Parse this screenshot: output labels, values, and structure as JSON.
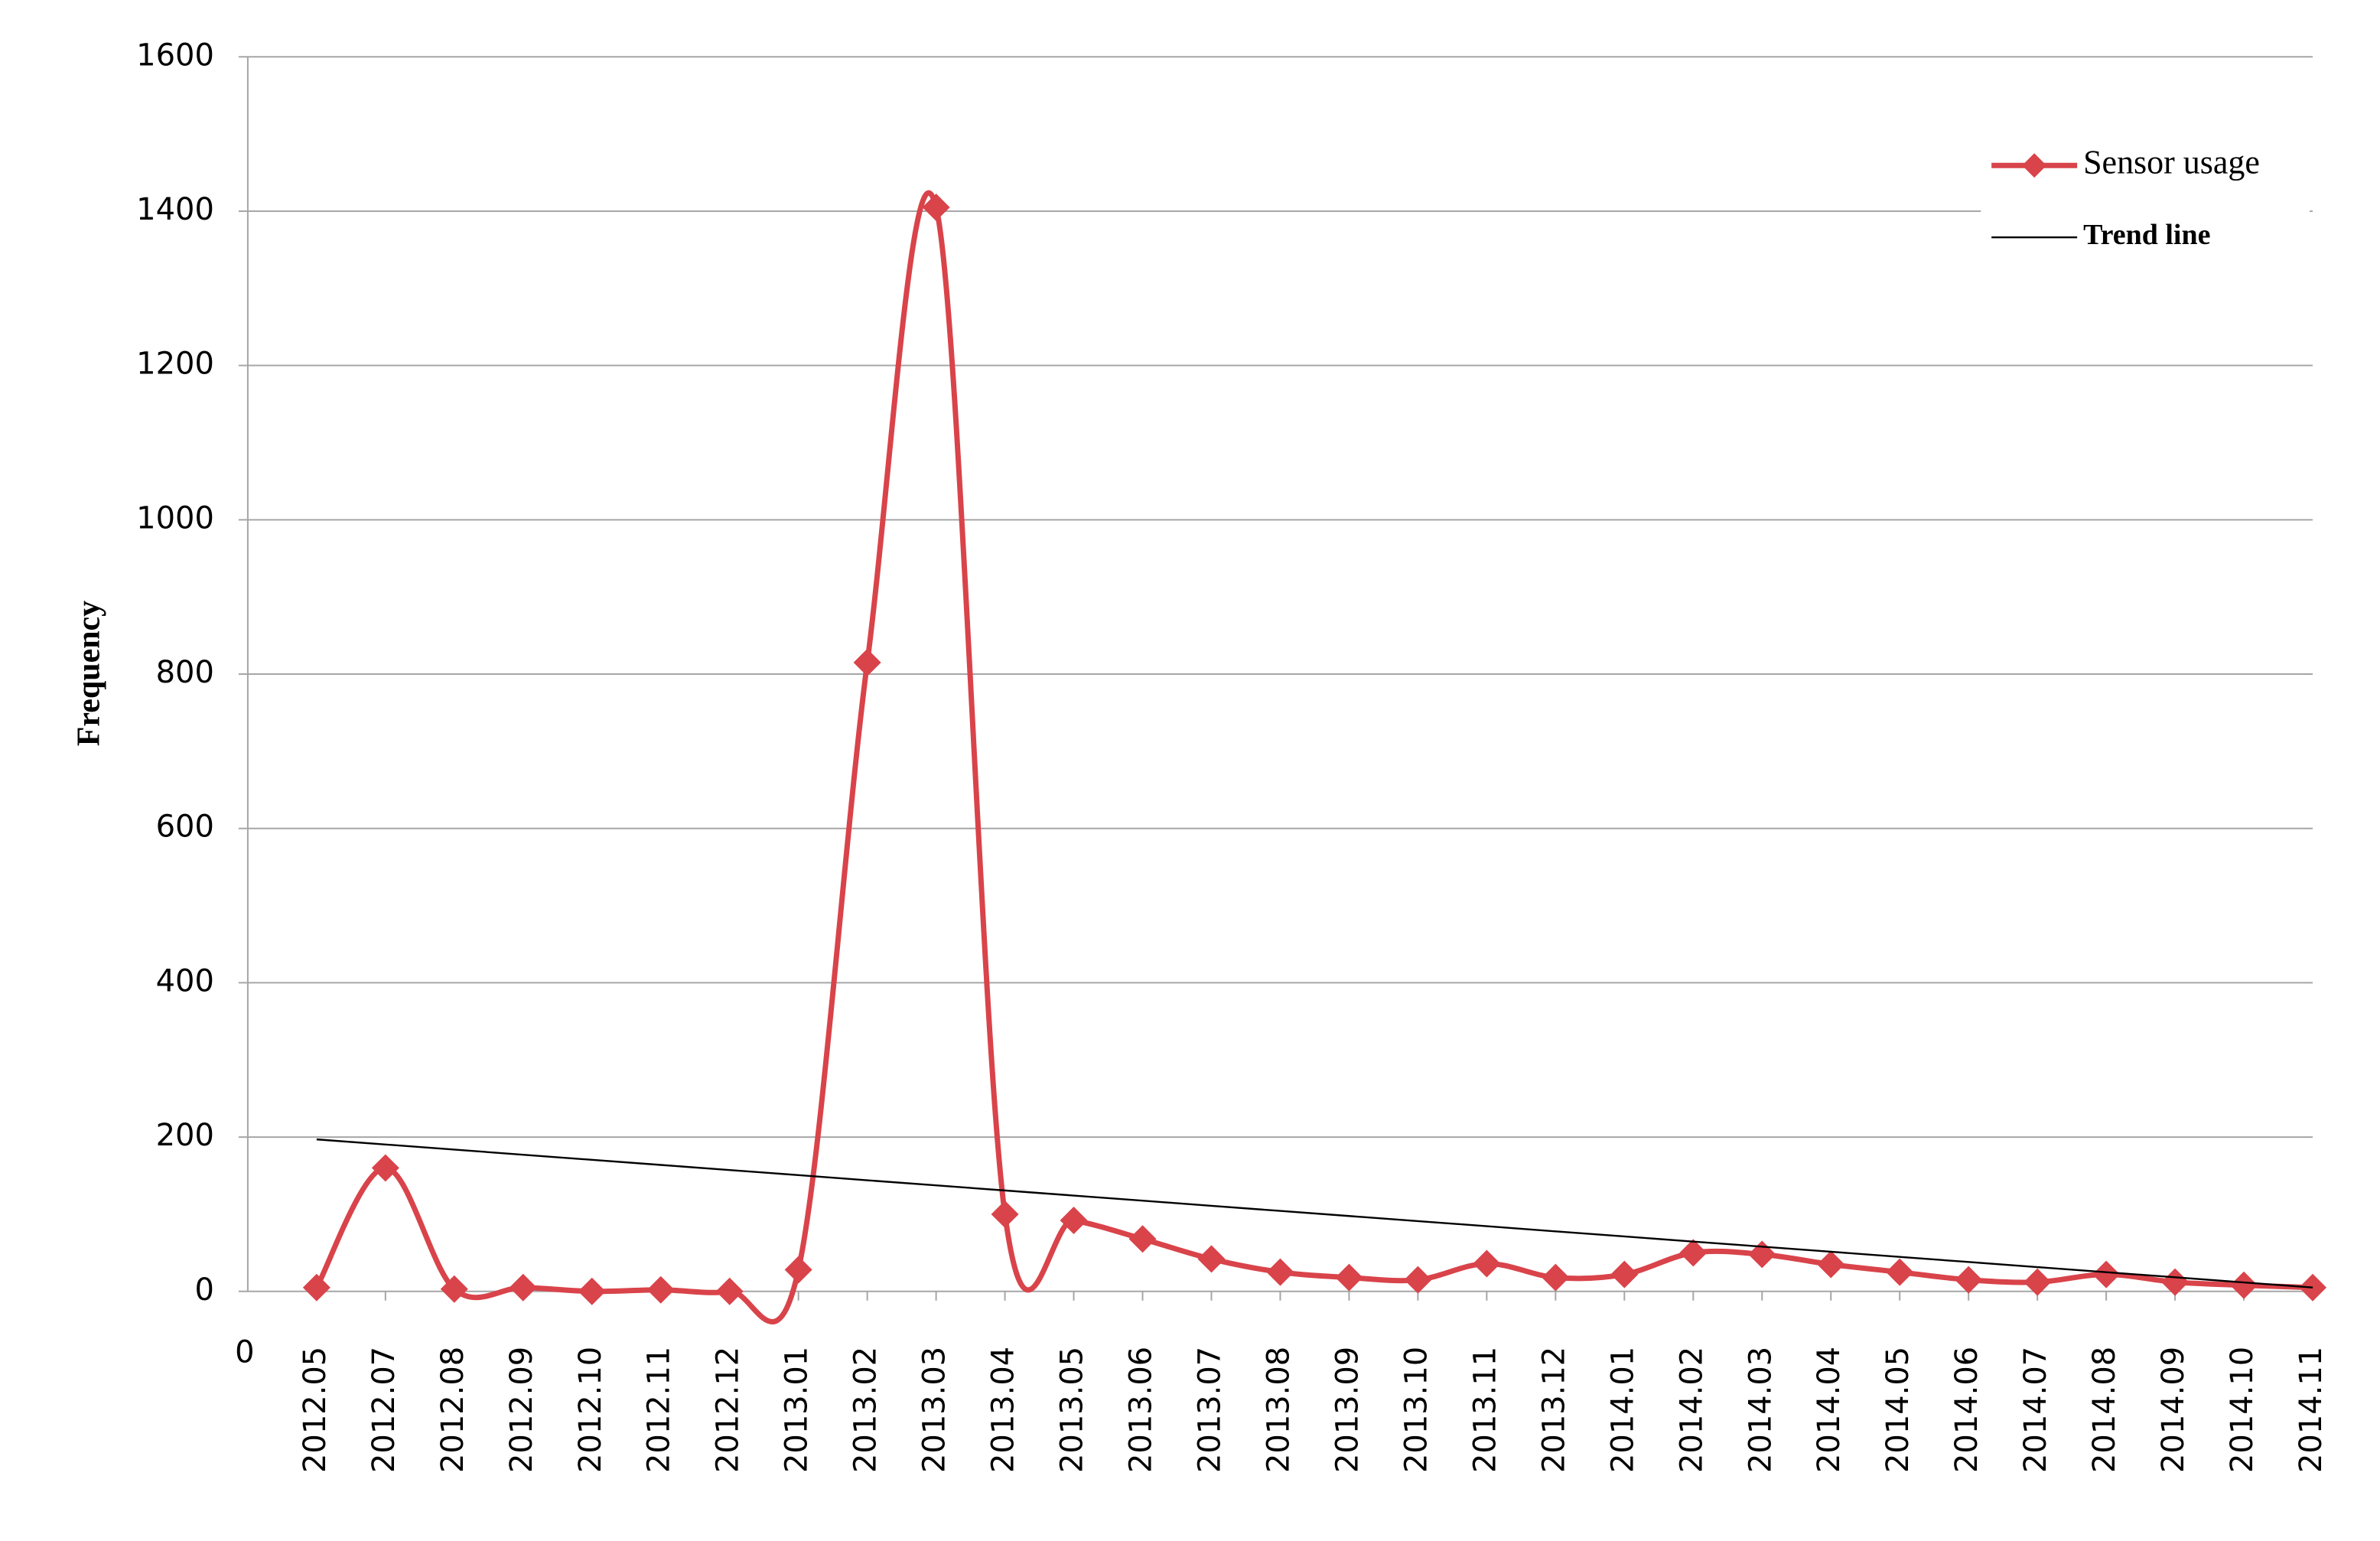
{
  "chart_data": {
    "type": "line",
    "y_label": "Frequency",
    "annotations": [
      "0"
    ],
    "categories": [
      "2012.05",
      "2012.07",
      "2012.08",
      "2012.09",
      "2012.10",
      "2012.11",
      "2012.12",
      "2013.01",
      "2013.02",
      "2013.03",
      "2013.04",
      "2013.05",
      "2013.06",
      "2013.07",
      "2013.08",
      "2013.09",
      "2013.10",
      "2013.11",
      "2013.12",
      "2014.01",
      "2014.02",
      "2014.03",
      "2014.04",
      "2014.05",
      "2014.06",
      "2014.07",
      "2014.08",
      "2014.09",
      "2014.10",
      "2014.11"
    ],
    "series": [
      {
        "name": "Sensor usage",
        "color": "#d9434a",
        "smooth": true,
        "marker": "diamond",
        "values": [
          5,
          160,
          3,
          5,
          0,
          2,
          0,
          28,
          815,
          1405,
          100,
          92,
          68,
          42,
          25,
          18,
          15,
          36,
          18,
          22,
          50,
          48,
          35,
          25,
          15,
          12,
          22,
          12,
          8,
          5
        ]
      },
      {
        "name": "Trend line",
        "color": "#000000",
        "smooth": false,
        "marker": "none",
        "values": [
          197,
          190.4,
          183.8,
          177.1,
          170.5,
          163.9,
          157.3,
          150.7,
          144.0,
          137.4,
          130.8,
          124.2,
          117.6,
          110.9,
          104.3,
          97.7,
          91.1,
          84.5,
          77.8,
          71.2,
          64.6,
          58.0,
          51.4,
          44.7,
          38.1,
          31.5,
          24.9,
          18.3,
          11.6,
          5
        ]
      }
    ],
    "ylim": [
      0,
      1600
    ],
    "yticks": [
      0,
      200,
      400,
      600,
      800,
      1000,
      1200,
      1400,
      1600
    ],
    "grid": true,
    "legend": "upper right"
  }
}
